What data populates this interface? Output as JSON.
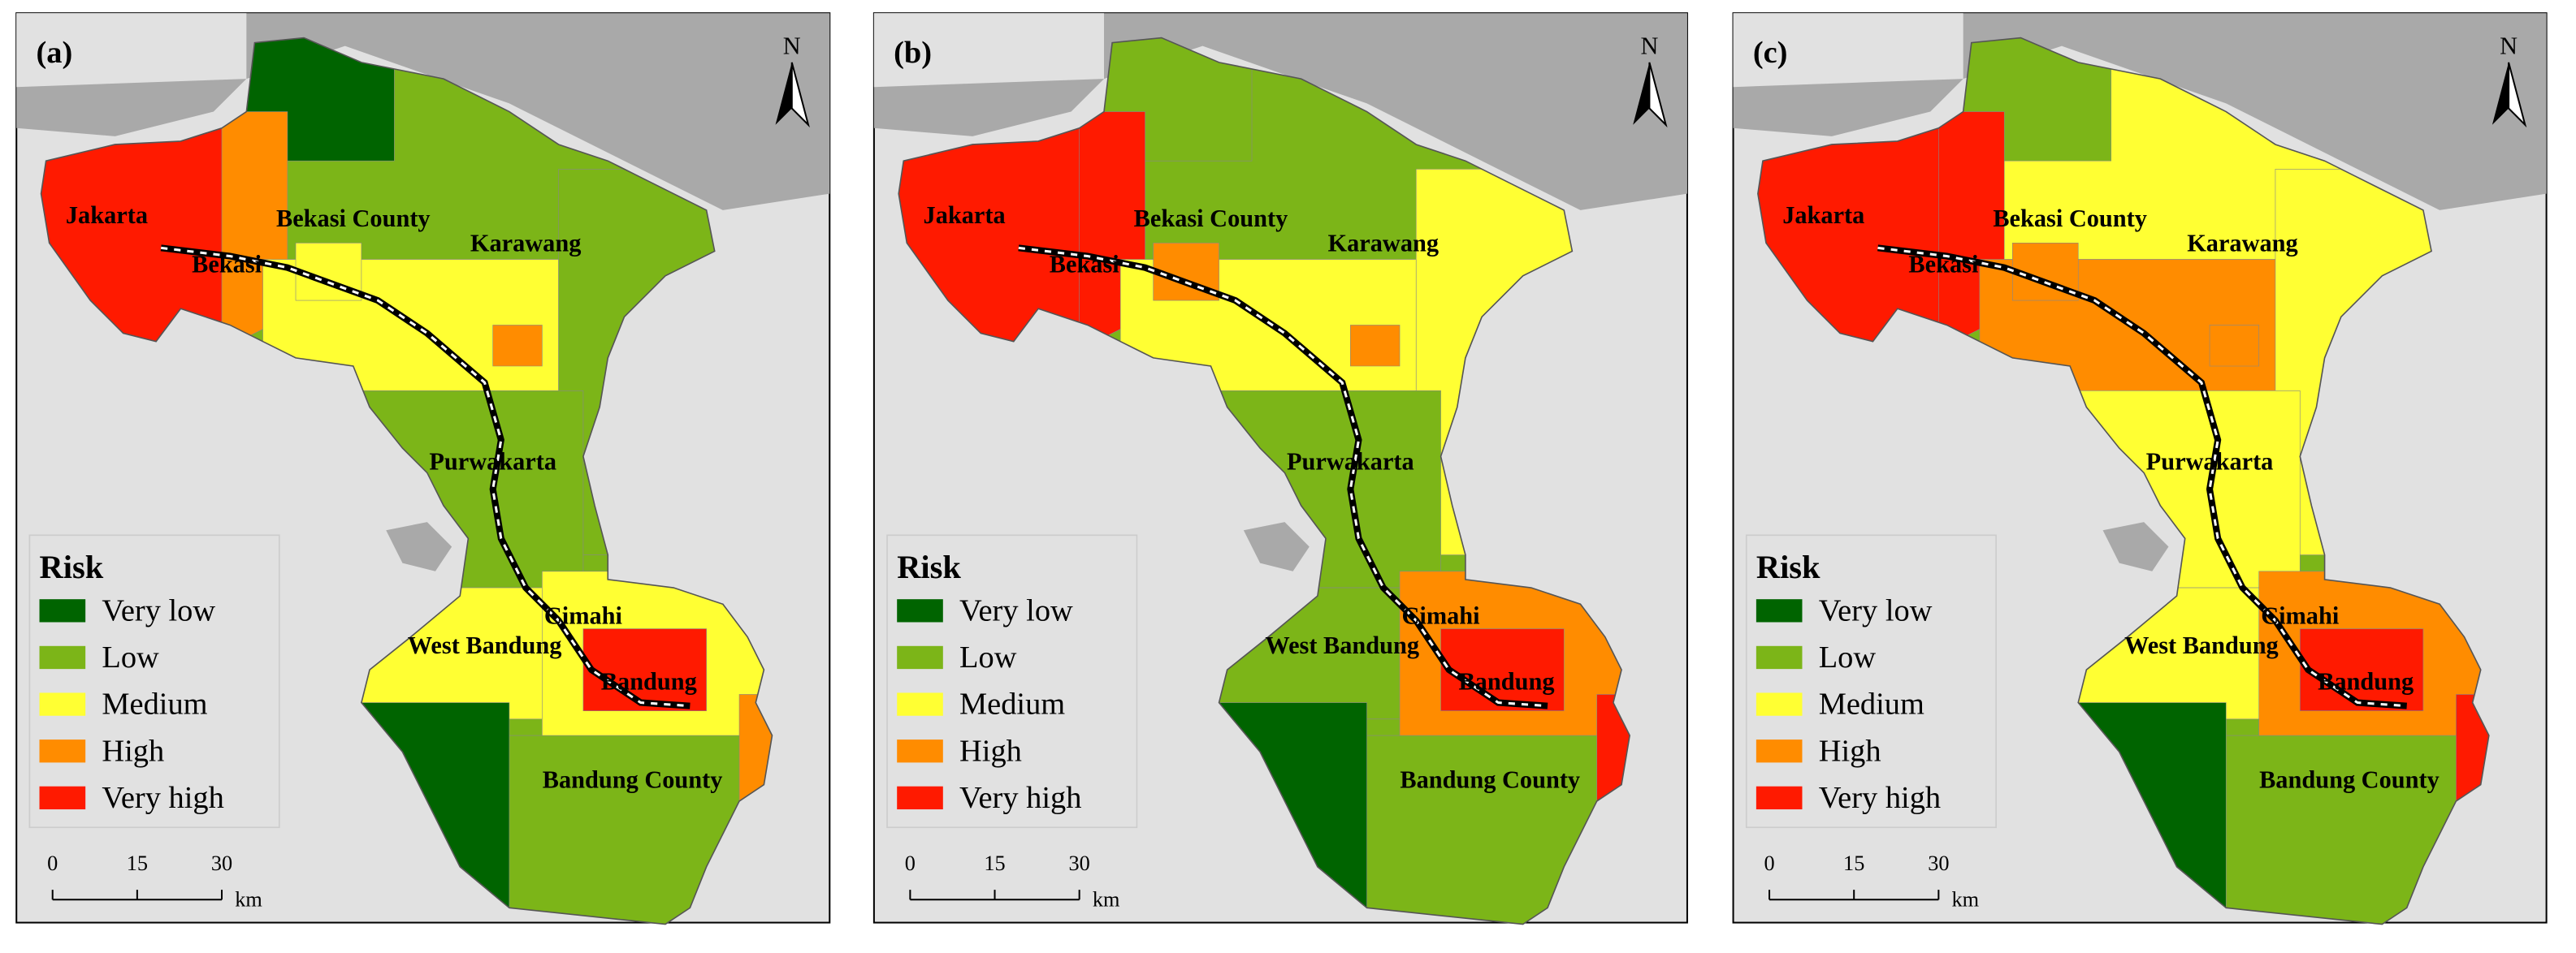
{
  "panels": [
    {
      "label": "(a)",
      "places": [
        "Jakarta",
        "Bekasi",
        "Bekasi County",
        "Karawang",
        "Purwakarta",
        "Cimahi",
        "West Bandung",
        "Bandung",
        "Bandung County"
      ]
    },
    {
      "label": "(b)",
      "places": [
        "Jakarta",
        "Bekasi",
        "Bekasi County",
        "Karawang",
        "Purwakarta",
        "Cimahi",
        "West Bandung",
        "Bandung",
        "Bandung County"
      ]
    },
    {
      "label": "(c)",
      "places": [
        "Jakarta",
        "Bekasi",
        "Bekasi County",
        "Karawang",
        "Purwakarta",
        "Cimahi",
        "West Bandung",
        "Bandung",
        "Bandung County"
      ]
    }
  ],
  "legend": {
    "title": "Risk",
    "items": [
      {
        "label": "Very low",
        "color": "#006400"
      },
      {
        "label": "Low",
        "color": "#7cb518"
      },
      {
        "label": "Medium",
        "color": "#ffff33"
      },
      {
        "label": "High",
        "color": "#ff8c00"
      },
      {
        "label": "Very high",
        "color": "#ff1a00"
      }
    ]
  },
  "scale": {
    "ticks": [
      0,
      15,
      30
    ],
    "unit": "km"
  },
  "north": "N"
}
